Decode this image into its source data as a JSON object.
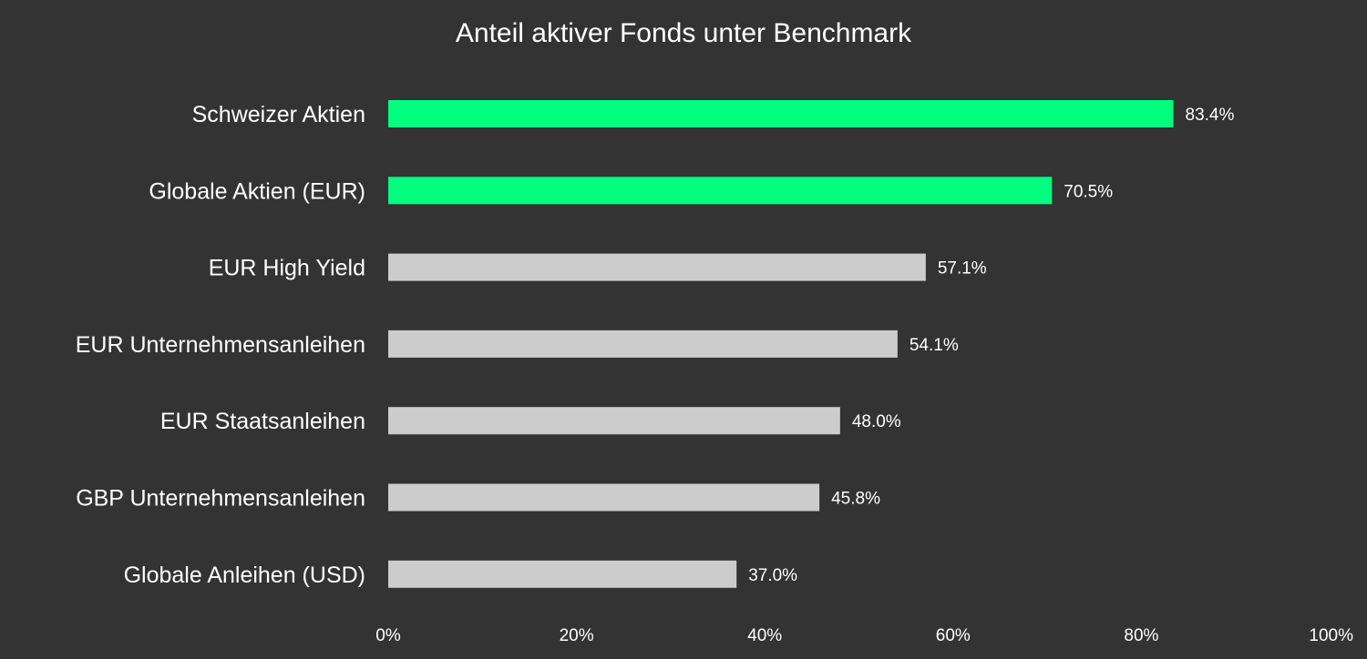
{
  "chart_data": {
    "type": "bar",
    "orientation": "horizontal",
    "title": "Anteil aktiver Fonds unter Benchmark",
    "xlabel": "",
    "ylabel": "",
    "categories": [
      "Schweizer Aktien",
      "Globale Aktien (EUR)",
      "EUR High Yield",
      "EUR Unternehmensanleihen",
      "EUR Staatsanleihen",
      "GBP Unternehmensanleihen",
      "Globale Anleihen (USD)"
    ],
    "values": [
      83.4,
      70.5,
      57.1,
      54.1,
      48.0,
      45.8,
      37.0
    ],
    "value_labels": [
      "83.4%",
      "70.5%",
      "57.1%",
      "54.1%",
      "48.0%",
      "45.8%",
      "37.0%"
    ],
    "highlighted": [
      true,
      true,
      false,
      false,
      false,
      false,
      false
    ],
    "xlim": [
      0,
      100
    ],
    "x_ticks": [
      0,
      20,
      40,
      60,
      80,
      100
    ],
    "x_tick_labels": [
      "0%",
      "20%",
      "40%",
      "60%",
      "80%",
      "100%"
    ],
    "grid": false,
    "legend": "none",
    "colors": {
      "background": "#333333",
      "highlight_bar": "#00ff7f",
      "default_bar": "#cccccc",
      "text": "#ffffff"
    }
  }
}
